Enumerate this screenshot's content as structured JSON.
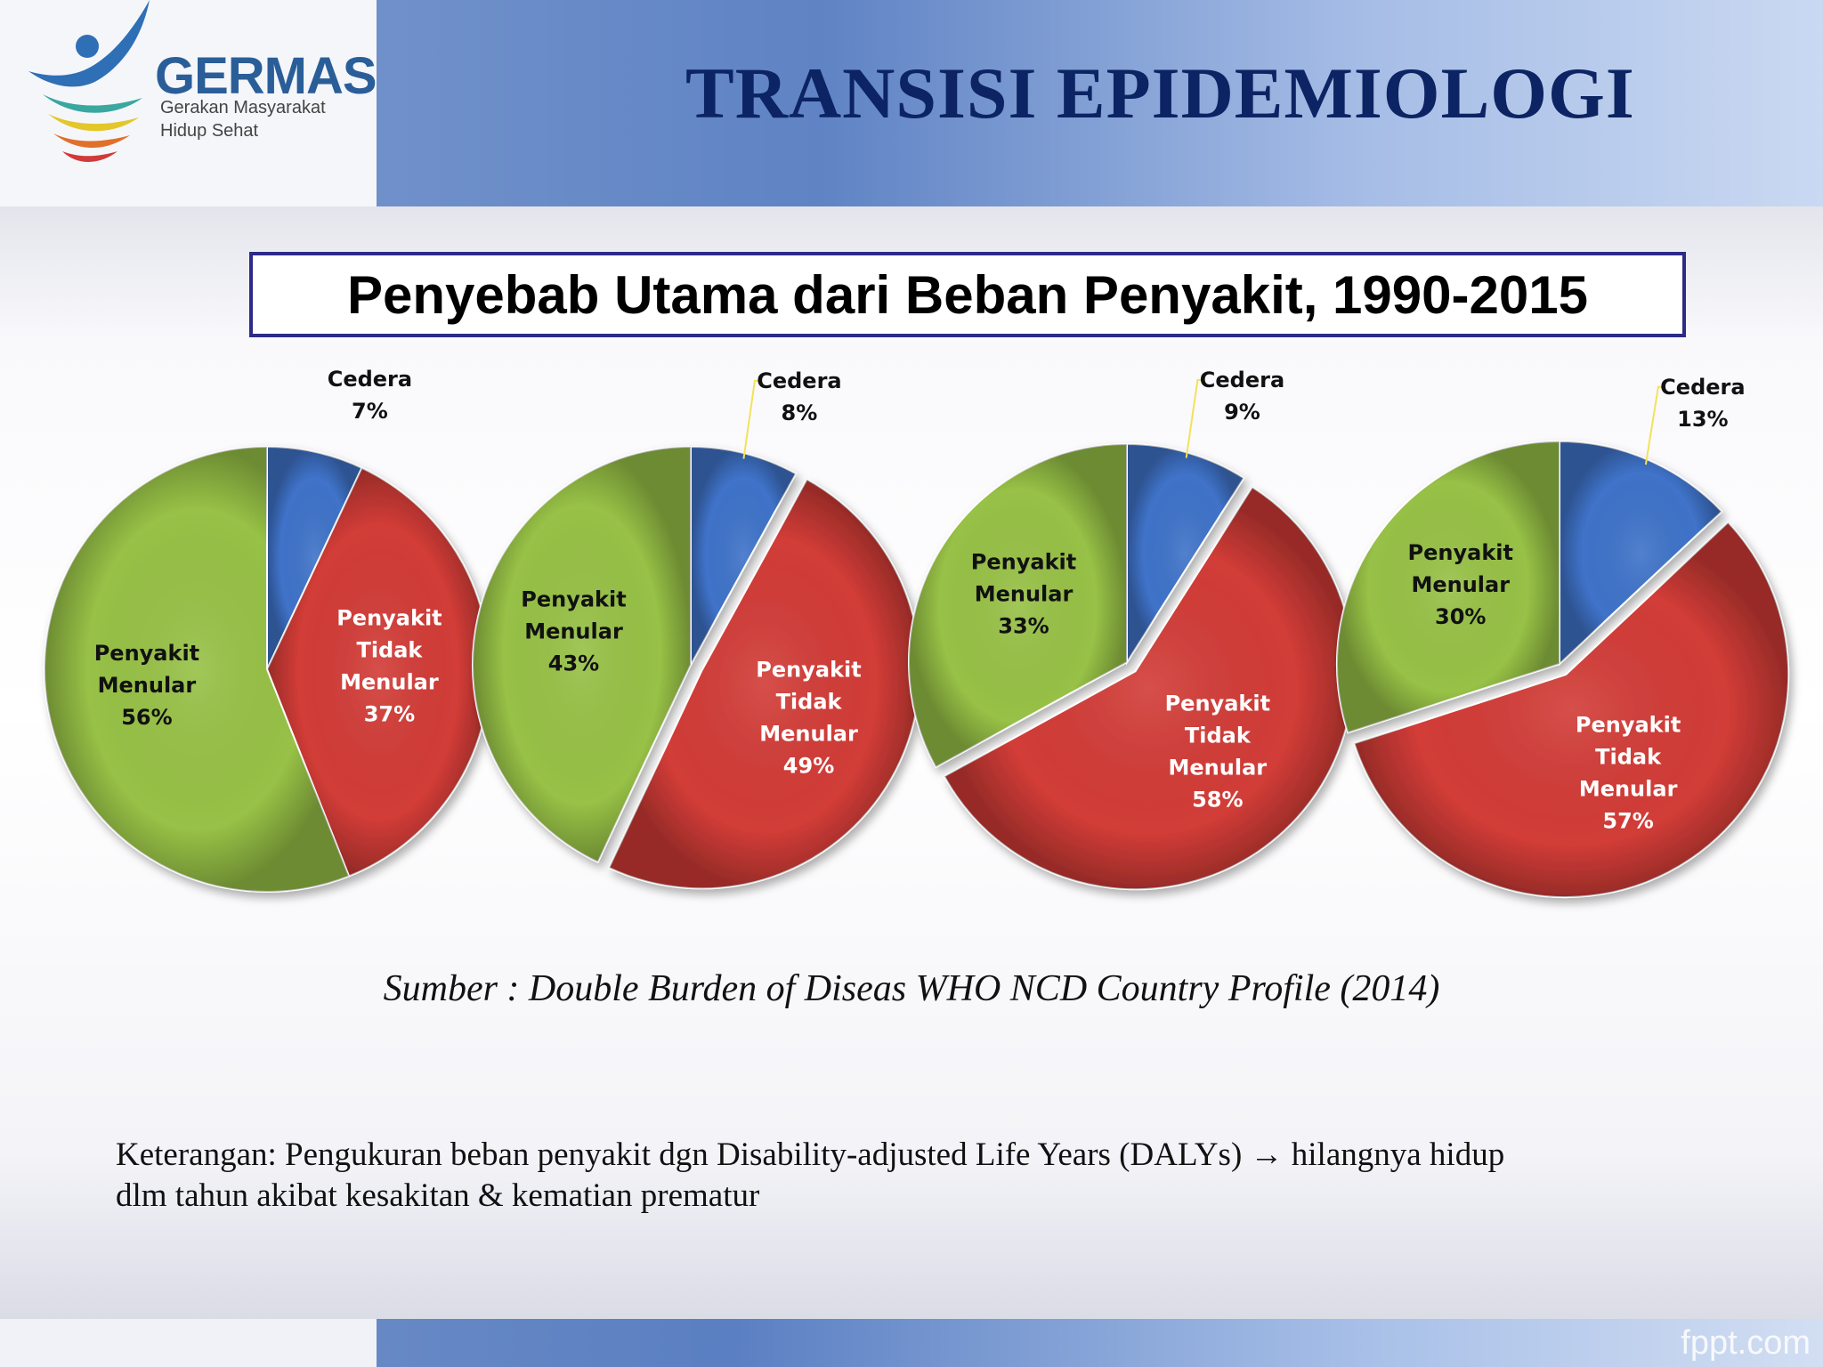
{
  "header": {
    "logo": {
      "name": "GERMAS",
      "tagline_1": "Gerakan Masyarakat",
      "tagline_2": "Hidup Sehat"
    },
    "title": "TRANSISI EPIDEMIOLOGI"
  },
  "chart_title": "Penyebab Utama dari Beban Penyakit, 1990-2015",
  "chart_data": {
    "type": "pie",
    "title": "Penyebab Utama dari Beban Penyakit, 1990-2015",
    "colors": {
      "cedera": "#3f73c9",
      "tidak_menular": "#d23c37",
      "menular": "#97c146"
    },
    "pies": [
      {
        "slices": [
          {
            "key": "cedera",
            "label": [
              "Cedera",
              "7%"
            ],
            "value": 7
          },
          {
            "key": "tidak_menular",
            "label": [
              "Penyakit",
              "Tidak",
              "Menular",
              "37%"
            ],
            "value": 37
          },
          {
            "key": "menular",
            "label": [
              "Penyakit",
              "Menular",
              "56%"
            ],
            "value": 56
          }
        ]
      },
      {
        "slices": [
          {
            "key": "cedera",
            "label": [
              "Cedera",
              "8%"
            ],
            "value": 8
          },
          {
            "key": "tidak_menular",
            "label": [
              "Penyakit",
              "Tidak",
              "Menular",
              "49%"
            ],
            "value": 49
          },
          {
            "key": "menular",
            "label": [
              "Penyakit",
              "Menular",
              "43%"
            ],
            "value": 43
          }
        ]
      },
      {
        "slices": [
          {
            "key": "cedera",
            "label": [
              "Cedera",
              "9%"
            ],
            "value": 9
          },
          {
            "key": "tidak_menular",
            "label": [
              "Penyakit",
              "Tidak",
              "Menular",
              "58%"
            ],
            "value": 58
          },
          {
            "key": "menular",
            "label": [
              "Penyakit",
              "Menular",
              "33%"
            ],
            "value": 33
          }
        ]
      },
      {
        "slices": [
          {
            "key": "cedera",
            "label": [
              "Cedera",
              "13%"
            ],
            "value": 13
          },
          {
            "key": "tidak_menular",
            "label": [
              "Penyakit",
              "Tidak",
              "Menular",
              "57%"
            ],
            "value": 57
          },
          {
            "key": "menular",
            "label": [
              "Penyakit",
              "Menular",
              "30%"
            ],
            "value": 30
          }
        ]
      }
    ]
  },
  "source": "Sumber : Double Burden of Diseas WHO NCD Country Profile (2014)",
  "note": {
    "line_1": "Keterangan: Pengukuran beban penyakit dgn Disability-adjusted Life Years (DALYs) →  hilangnya hidup",
    "line_2": "dlm tahun akibat kesakitan & kematian prematur"
  },
  "footer": {
    "brand": "fppt.com"
  }
}
